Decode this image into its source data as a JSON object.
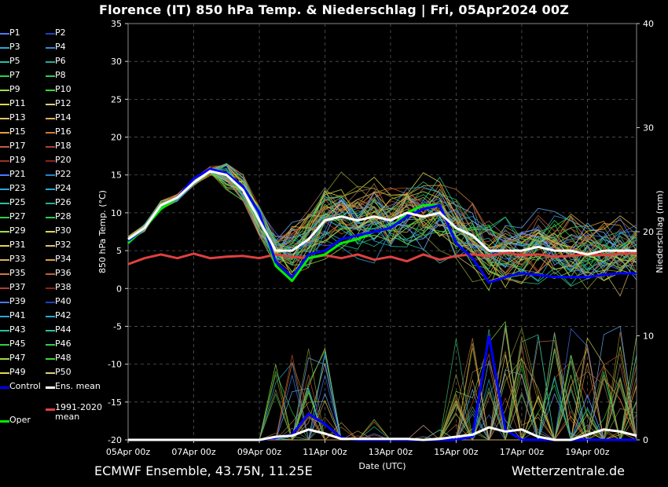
{
  "header": {
    "title": "Florence  (IT)  850 hPa Temp. & Niederschlag | Fri, 05Apr2024 00Z"
  },
  "footer": {
    "left": "ECMWF Ensemble, 43.75N, 11.25E",
    "right": "Wetterzentrale.de"
  },
  "legend": {
    "members": [
      "P1",
      "P2",
      "P3",
      "P4",
      "P5",
      "P6",
      "P7",
      "P8",
      "P9",
      "P10",
      "P11",
      "P12",
      "P13",
      "P14",
      "P15",
      "P16",
      "P17",
      "P18",
      "P19",
      "P20",
      "P21",
      "P22",
      "P23",
      "P24",
      "P25",
      "P26",
      "P27",
      "P28",
      "P29",
      "P30",
      "P31",
      "P32",
      "P33",
      "P34",
      "P35",
      "P36",
      "P37",
      "P38",
      "P39",
      "P40",
      "P41",
      "P42",
      "P43",
      "P44",
      "P45",
      "P46",
      "P47",
      "P48",
      "P49",
      "P50"
    ],
    "control": "Control",
    "ens_mean": "Ens. mean",
    "climate": "1991-2020 mean",
    "oper": "Oper",
    "colors": {
      "control": "#0000ff",
      "ens_mean": "#ffffff",
      "climate": "#e04040",
      "oper": "#00ee00"
    }
  },
  "chart_data": {
    "type": "line",
    "xlabel": "Date (UTC)",
    "ylabel": "850 hPa Temp. (°C)",
    "y2label": "Niederschlag (mm)",
    "ylim": [
      -20,
      35
    ],
    "y2lim": [
      0,
      40
    ],
    "yticks": [
      35,
      30,
      25,
      20,
      15,
      10,
      5,
      0,
      -5,
      -10,
      -15,
      -20
    ],
    "y2ticks": [
      40,
      30,
      20,
      10,
      0
    ],
    "xticks": [
      "05Apr 00z",
      "07Apr 00z",
      "09Apr 00z",
      "11Apr 00z",
      "13Apr 00z",
      "15Apr 00z",
      "17Apr 00z",
      "19Apr 00z"
    ],
    "xlim_days": [
      0,
      15.5
    ],
    "grid": true,
    "x_days": [
      0,
      0.5,
      1,
      1.5,
      2,
      2.5,
      3,
      3.5,
      4,
      4.5,
      5,
      5.5,
      6,
      6.5,
      7,
      7.5,
      8,
      8.5,
      9,
      9.5,
      10,
      10.5,
      11,
      11.5,
      12,
      12.5,
      13,
      13.5,
      14,
      14.5,
      15,
      15.5
    ],
    "series": [
      {
        "name": "Ens. mean",
        "role": "mean",
        "color": "#ffffff",
        "values": [
          6.5,
          8,
          11,
          12,
          14,
          15.5,
          15,
          13,
          9,
          5,
          5,
          6.5,
          9,
          9.5,
          9,
          9.5,
          9,
          10,
          9.5,
          10,
          8,
          7,
          5,
          5,
          5,
          5.5,
          5,
          5,
          4.5,
          5,
          5,
          5
        ]
      },
      {
        "name": "Control",
        "role": "control",
        "color": "#0000ff",
        "values": [
          6.3,
          8,
          11,
          12,
          14.5,
          15.8,
          15.2,
          13.5,
          10,
          3.5,
          1.5,
          4.5,
          5,
          6.5,
          7,
          7.5,
          8,
          9.5,
          10.5,
          11,
          6,
          4,
          0.8,
          1.5,
          2,
          1.8,
          1.5,
          1.5,
          1.5,
          1.8,
          2,
          2
        ]
      },
      {
        "name": "Oper",
        "role": "oper",
        "color": "#00ee00",
        "values": [
          6,
          8,
          10.5,
          12,
          14,
          15.5,
          15,
          13.5,
          10,
          3,
          1,
          4,
          4.5,
          6,
          6.5,
          7.5,
          8,
          10,
          11,
          11,
          null,
          null,
          null,
          null,
          null,
          null,
          null,
          null,
          null,
          null,
          null,
          null
        ]
      },
      {
        "name": "1991-2020 mean",
        "role": "climate",
        "color": "#e04040",
        "values": [
          3.2,
          4,
          4.5,
          4,
          4.6,
          4,
          4.2,
          4.3,
          4,
          4.5,
          4.2,
          4,
          4.4,
          4,
          4.5,
          3.8,
          4.2,
          3.6,
          4.5,
          3.8,
          4.3,
          4.5,
          4.3,
          4.7,
          4.4,
          4.5,
          4.2,
          4.3,
          4.5,
          4.4,
          4.6,
          4.6
        ]
      }
    ],
    "precip": {
      "unit": "mm",
      "x_days": [
        0,
        1,
        2,
        3,
        4,
        4.5,
        5,
        5.5,
        6,
        6.5,
        7,
        7.5,
        8,
        8.5,
        9,
        9.5,
        10,
        10.5,
        11,
        11.5,
        12,
        12.5,
        13,
        13.5,
        14,
        14.5,
        15,
        15.5
      ],
      "control": [
        0,
        0,
        0,
        0,
        0,
        0.2,
        0.5,
        2.5,
        1.5,
        0.2,
        0,
        0,
        0,
        0,
        0,
        0,
        0,
        0.3,
        10,
        1,
        0,
        0,
        0,
        0,
        0,
        0,
        0,
        0
      ],
      "mean": [
        0,
        0,
        0,
        0,
        0,
        0.3,
        0.4,
        1,
        0.6,
        0.1,
        0.1,
        0.1,
        0.1,
        0.1,
        0,
        0.1,
        0.3,
        0.5,
        1.2,
        0.8,
        1,
        0.3,
        0,
        0,
        0.5,
        1,
        0.8,
        0.4
      ]
    }
  }
}
